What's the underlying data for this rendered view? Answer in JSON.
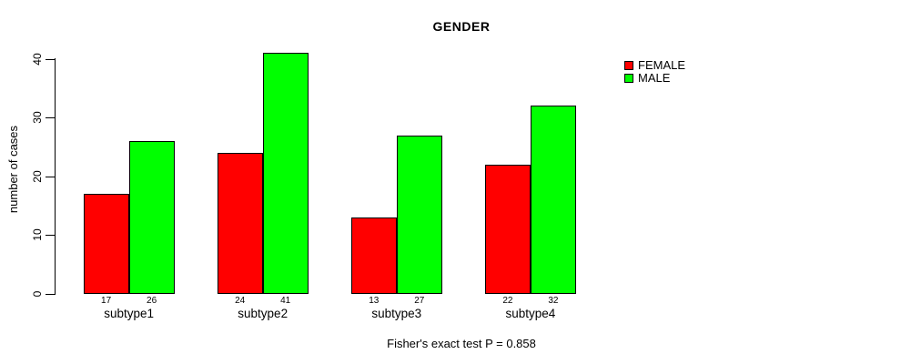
{
  "title": "GENDER",
  "caption": "Fisher's exact test P = 0.858",
  "y_axis": {
    "label": "number of cases",
    "ticks": [
      0,
      10,
      20,
      30,
      40
    ]
  },
  "legend": [
    {
      "label": "FEMALE",
      "color": "#ff0000"
    },
    {
      "label": "MALE",
      "color": "#00ff00"
    }
  ],
  "colors": {
    "female": "#ff0000",
    "male": "#00ff00",
    "axis": "#000000",
    "background": "#ffffff"
  },
  "chart_data": {
    "type": "bar",
    "title": "GENDER",
    "categories": [
      "subtype1",
      "subtype2",
      "subtype3",
      "subtype4"
    ],
    "series": [
      {
        "name": "FEMALE",
        "color": "#ff0000",
        "values": [
          17,
          24,
          13,
          22
        ]
      },
      {
        "name": "MALE",
        "color": "#00ff00",
        "values": [
          26,
          41,
          27,
          32
        ]
      }
    ],
    "bar_value_labels": {
      "FEMALE": [
        17,
        24,
        13,
        22
      ],
      "MALE": [
        26,
        41,
        27,
        32
      ]
    },
    "xlabel": "",
    "ylabel": "number of cases",
    "ylim": [
      0,
      40
    ],
    "yticks": [
      0,
      10,
      20,
      30,
      40
    ],
    "grid": false,
    "legend_position": "top-right",
    "caption": "Fisher's exact test P = 0.858"
  }
}
